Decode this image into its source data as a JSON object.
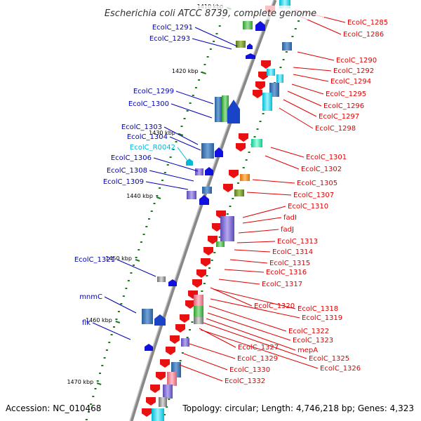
{
  "title": "Escherichia coli ATCC 8739, complete genome",
  "accession": "Accession: NC_010468",
  "topology": "Topology: circular; Length: 4,746,218 bp; Genes: 4,323",
  "colors": {
    "left_label": "#0000b8",
    "right_label": "#e00000",
    "rna_label": "#00b8d8",
    "backbone": "#888888",
    "tick": "#1a7a1a"
  },
  "ticks": [
    "1410 kbp",
    "1420 kbp",
    "1430 kbp",
    "1440 kbp",
    "1450 kbp",
    "1460 kbp",
    "1470 kbp"
  ],
  "left_labels": [
    "EcolC_1291",
    "EcolC_1293",
    "EcolC_1299",
    "EcolC_1300",
    "EcolC_1303",
    "EcolC_1304",
    "EcolC_R0042",
    "EcolC_1306",
    "EcolC_1308",
    "EcolC_1309",
    "EcolC_1321",
    "mnmC",
    "flk"
  ],
  "right_labels": [
    "EcolC_1285",
    "EcolC_1286",
    "EcolC_1290",
    "EcolC_1292",
    "EcolC_1294",
    "EcolC_1295",
    "EcolC_1296",
    "EcolC_1297",
    "EcolC_1298",
    "EcolC_1301",
    "EcolC_1302",
    "EcolC_1305",
    "EcolC_1307",
    "EcolC_1310",
    "fadI",
    "fadJ",
    "EcolC_1313",
    "EcolC_1314",
    "EcolC_1315",
    "EcolC_1316",
    "EcolC_1317",
    "EcolC_1320",
    "EcolC_1318",
    "EcolC_1319",
    "EcolC_1322",
    "EcolC_1323",
    "mepA",
    "EcolC_1327",
    "EcolC_1325",
    "EcolC_1329",
    "EcolC_1326",
    "EcolC_1330",
    "EcolC_1332"
  ]
}
